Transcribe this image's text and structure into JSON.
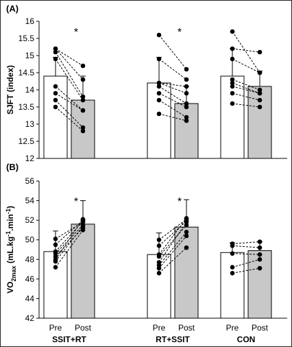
{
  "chart_data": [
    {
      "type": "bar",
      "panel_label": "(A)",
      "ylabel": "SJFT (index)",
      "ylim": [
        12,
        16
      ],
      "yticks": [
        "12",
        "12.5",
        "13",
        "13.5",
        "14",
        "14.5",
        "15",
        "15.5",
        "16"
      ],
      "groups": [
        {
          "name": "SSIT+RT",
          "pre": {
            "label": "Pre",
            "mean": 14.4,
            "sd": 0.55,
            "fill": "#ffffff"
          },
          "post": {
            "label": "Post",
            "mean": 13.7,
            "sd": 0.7,
            "fill": "#c8c8c8"
          },
          "individuals": [
            [
              15.2,
              14.7
            ],
            [
              15.2,
              14.3
            ],
            [
              15.1,
              13.8
            ],
            [
              14.9,
              13.7
            ],
            [
              14.1,
              13.4
            ],
            [
              13.9,
              13.4
            ],
            [
              13.7,
              12.9
            ],
            [
              13.5,
              12.8
            ]
          ],
          "significant": true,
          "marker": "*"
        },
        {
          "name": "RT+SSIT",
          "pre": {
            "label": "Pre",
            "mean": 14.2,
            "sd": 0.75,
            "fill": "#ffffff"
          },
          "post": {
            "label": "Post",
            "mean": 13.6,
            "sd": 0.5,
            "fill": "#c8c8c8"
          },
          "individuals": [
            [
              15.6,
              14.6
            ],
            [
              14.9,
              14.3
            ],
            [
              14.2,
              14.1
            ],
            [
              14.2,
              13.9
            ],
            [
              14.1,
              13.6
            ],
            [
              13.9,
              13.5
            ],
            [
              13.7,
              13.2
            ],
            [
              13.3,
              13.1
            ]
          ],
          "significant": true,
          "marker": "*"
        },
        {
          "name": "CON",
          "pre": {
            "label": "Pre",
            "mean": 14.4,
            "sd": 0.8,
            "fill": "#ffffff"
          },
          "post": {
            "label": "Post",
            "mean": 14.1,
            "sd": 0.45,
            "fill": "#c8c8c8"
          },
          "individuals": [
            [
              15.7,
              14.5
            ],
            [
              15.2,
              15.1
            ],
            [
              14.9,
              14.5
            ],
            [
              14.3,
              14.0
            ],
            [
              14.2,
              13.9
            ],
            [
              14.1,
              13.9
            ],
            [
              13.9,
              13.7
            ],
            [
              13.6,
              13.5
            ]
          ],
          "significant": false,
          "marker": ""
        }
      ]
    },
    {
      "type": "bar",
      "panel_label": "(B)",
      "ylabel_main": "VO",
      "ylabel_sub": "2max",
      "ylabel_unit": " (mL.kg",
      "ylabel_exp1": "-1",
      "ylabel_mid": ".min",
      "ylabel_exp2": "-1",
      "ylabel_end": ")",
      "ylim": [
        42,
        56
      ],
      "yticks": [
        "42",
        "44",
        "46",
        "48",
        "50",
        "52",
        "54",
        "56"
      ],
      "groups": [
        {
          "name": "SSIT+RT",
          "pre": {
            "label": "Pre",
            "mean": 48.8,
            "sd": 2.1,
            "fill": "#ffffff"
          },
          "post": {
            "label": "Post",
            "mean": 51.6,
            "sd": 2.4,
            "fill": "#c8c8c8"
          },
          "individuals": [
            [
              50.1,
              51.8
            ],
            [
              49.5,
              52.0
            ],
            [
              48.8,
              51.9
            ],
            [
              48.6,
              51.5
            ],
            [
              48.3,
              51.2
            ],
            [
              48.0,
              52.1
            ],
            [
              47.8,
              51.4
            ],
            [
              47.2,
              51.0
            ]
          ],
          "significant": true,
          "marker": "*"
        },
        {
          "name": "RT+SSIT",
          "pre": {
            "label": "Pre",
            "mean": 48.5,
            "sd": 2.2,
            "fill": "#ffffff"
          },
          "post": {
            "label": "Post",
            "mean": 51.3,
            "sd": 2.8,
            "fill": "#c8c8c8"
          },
          "individuals": [
            [
              50.0,
              52.1
            ],
            [
              49.4,
              51.9
            ],
            [
              48.5,
              52.2
            ],
            [
              48.3,
              51.5
            ],
            [
              47.7,
              51.8
            ],
            [
              47.4,
              50.8
            ],
            [
              47.1,
              50.4
            ],
            [
              46.6,
              49.2
            ]
          ],
          "significant": true,
          "marker": "*"
        },
        {
          "name": "CON",
          "pre": {
            "label": "Pre",
            "mean": 48.7,
            "sd": 1.0,
            "fill": "#ffffff"
          },
          "post": {
            "label": "Post",
            "mean": 48.9,
            "sd": 0.9,
            "fill": "#c8c8c8"
          },
          "individuals": [
            [
              49.6,
              49.8
            ],
            [
              49.4,
              49.2
            ],
            [
              48.6,
              48.5
            ],
            [
              47.2,
              48.0
            ],
            [
              46.6,
              47.1
            ]
          ],
          "significant": false,
          "marker": ""
        }
      ]
    }
  ]
}
